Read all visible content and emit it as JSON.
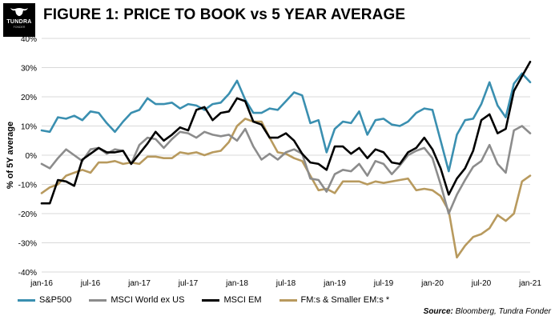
{
  "logo": {
    "brand": "TUNDRA",
    "sub": "FONDER"
  },
  "title": "FIGURE 1: PRICE TO BOOK vs 5 YEAR AVERAGE",
  "source": {
    "label": "Source:",
    "text": "Bloomberg, Tundra Fonder"
  },
  "chart_data": {
    "type": "line",
    "ylabel": "% of 5Y average",
    "ylim": [
      -40,
      40
    ],
    "yticks": [
      -40,
      -30,
      -20,
      -10,
      0,
      10,
      20,
      30,
      40
    ],
    "ytick_labels": [
      "-40%",
      "-30%",
      "-20%",
      "-10%",
      "0%",
      "10%",
      "20%",
      "30%",
      "40%"
    ],
    "xtick_labels": [
      "jan-16",
      "jul-16",
      "jan-17",
      "jul-17",
      "jan-18",
      "jul-18",
      "jan-19",
      "jul-19",
      "jan-20",
      "jul-20",
      "jan-21"
    ],
    "grid": "horizontal",
    "legend": "bottom",
    "x": [
      "jan-16",
      "feb-16",
      "mar-16",
      "apr-16",
      "may-16",
      "jun-16",
      "jul-16",
      "aug-16",
      "sep-16",
      "oct-16",
      "nov-16",
      "dec-16",
      "jan-17",
      "feb-17",
      "mar-17",
      "apr-17",
      "may-17",
      "jun-17",
      "jul-17",
      "aug-17",
      "sep-17",
      "oct-17",
      "nov-17",
      "dec-17",
      "jan-18",
      "feb-18",
      "mar-18",
      "apr-18",
      "may-18",
      "jun-18",
      "jul-18",
      "aug-18",
      "sep-18",
      "oct-18",
      "nov-18",
      "dec-18",
      "jan-19",
      "feb-19",
      "mar-19",
      "apr-19",
      "may-19",
      "jun-19",
      "jul-19",
      "aug-19",
      "sep-19",
      "oct-19",
      "nov-19",
      "dec-19",
      "jan-20",
      "feb-20",
      "mar-20",
      "apr-20",
      "may-20",
      "jun-20",
      "jul-20",
      "aug-20",
      "sep-20",
      "oct-20",
      "nov-20",
      "dec-20",
      "jan-21"
    ],
    "series": [
      {
        "name": "S&P500",
        "color": "#3a8fb0",
        "values": [
          8.5,
          8,
          13,
          12.5,
          13.5,
          12,
          15,
          14.5,
          11,
          8,
          11.5,
          14.5,
          15.5,
          19.5,
          17.5,
          17.5,
          18,
          16,
          17.5,
          17,
          15.5,
          17.5,
          18,
          21,
          25.5,
          19,
          14.5,
          14.5,
          16,
          15.5,
          18.5,
          21.5,
          20.5,
          11,
          12,
          1,
          9,
          11.5,
          11,
          15,
          7,
          12,
          12.5,
          10.5,
          10,
          11.5,
          14.5,
          16,
          15.5,
          5,
          -5.5,
          7,
          12,
          12.5,
          17.5,
          25,
          17,
          13,
          24.5,
          28,
          25
        ]
      },
      {
        "name": "MSCI World ex US",
        "color": "#8c8c8c",
        "values": [
          -3,
          -4.5,
          -1,
          2,
          0,
          -2,
          2,
          2.5,
          0.5,
          2,
          1.5,
          -3,
          3.5,
          6,
          5.5,
          2.5,
          5.5,
          8,
          7.5,
          6,
          8,
          7,
          6.5,
          7,
          5,
          9,
          3,
          -1.5,
          0.5,
          -1.5,
          1,
          2,
          0.5,
          -8,
          -8.5,
          -12.5,
          -6.5,
          -5,
          -5.5,
          -3,
          -7,
          -2,
          -3,
          -6.5,
          -3.5,
          0,
          1.5,
          2.5,
          -1,
          -10,
          -20,
          -13.5,
          -8.5,
          -4,
          -2,
          3.5,
          -3,
          -6,
          8.5,
          10,
          7.5
        ]
      },
      {
        "name": "MSCI EM",
        "color": "#000000",
        "values": [
          -16.5,
          -16.5,
          -8.5,
          -9,
          -10.5,
          -1.5,
          0.5,
          2.5,
          1,
          1,
          1.5,
          -3,
          0.5,
          4,
          8,
          5,
          7,
          9.5,
          8.5,
          15.5,
          16.5,
          12,
          14.5,
          15,
          19.5,
          18.5,
          11.5,
          10.5,
          6,
          6,
          7.5,
          5,
          0.5,
          -2.5,
          -3,
          -5,
          3,
          3,
          0.5,
          2.5,
          -1,
          2,
          1,
          -2.5,
          -3,
          1,
          2.5,
          6,
          2,
          -4.5,
          -13.5,
          -8,
          -4.5,
          1.5,
          12,
          14,
          7.5,
          9,
          22,
          27,
          32
        ]
      },
      {
        "name": "FM:s & Smaller EM:s *",
        "color": "#b89a5e",
        "values": [
          -13,
          -11,
          -10,
          -7,
          -6,
          -5,
          -6,
          -2.5,
          -2.5,
          -2,
          -3,
          -2.5,
          -3,
          -0.5,
          -0.5,
          -1,
          -1,
          1,
          0.5,
          1,
          0,
          1,
          1.5,
          4.5,
          10,
          12.5,
          11.5,
          11.5,
          6,
          1,
          0.5,
          -1,
          -2,
          -7,
          -12,
          -11.5,
          -13,
          -9,
          -9,
          -9,
          -10,
          -9,
          -9.5,
          -9,
          -8.5,
          -8,
          -12,
          -11.5,
          -12,
          -14,
          -19,
          -35,
          -31,
          -28,
          -27,
          -25,
          -20.5,
          -22.5,
          -20,
          -9,
          -7
        ]
      }
    ]
  }
}
